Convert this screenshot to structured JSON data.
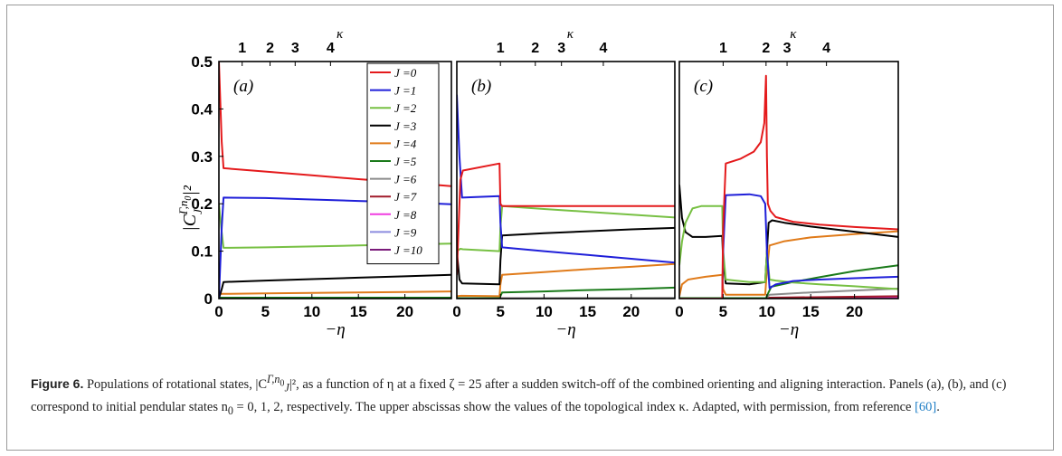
{
  "figure": {
    "caption_label": "Figure 6.",
    "caption_part1": "Populations of rotational states, |C",
    "caption_sup": "Γ,n",
    "caption_sup_sub": "0",
    "caption_sub": "J",
    "caption_part2": "|², as a function of η at a fixed ζ = 25 after a sudden switch-off of the combined orienting and aligning interaction. Panels (a), (b), and (c) correspond to initial pendular states n",
    "caption_n0_sub": "0",
    "caption_part3": " = 0, 1, 2, respectively. The upper abscissas show the values of the topological index κ. Adapted, with permission, from reference ",
    "caption_ref": "[60]",
    "caption_end": "."
  },
  "chart_data": [
    {
      "type": "line",
      "panel_label": "(a)",
      "xlabel": "−η",
      "ylabel": "|C_J^{Γ,n_0}|²",
      "xlim": [
        0,
        25
      ],
      "ylim": [
        0,
        0.5
      ],
      "xticks": [
        0,
        5,
        10,
        15,
        20
      ],
      "yticks": [
        0,
        0.1,
        0.2,
        0.3,
        0.4,
        0.5
      ],
      "top_axis_label": "κ",
      "top_ticks": [
        {
          "label": "1",
          "x": 2.5
        },
        {
          "label": "2",
          "x": 5.5
        },
        {
          "label": "3",
          "x": 8.2
        },
        {
          "label": "4",
          "x": 12.0
        }
      ],
      "series": [
        {
          "name": "J =0",
          "color": "#e41a1c",
          "x": [
            0,
            0.3,
            0.5,
            5,
            10,
            15,
            20,
            25
          ],
          "y": [
            0.5,
            0.33,
            0.275,
            0.268,
            0.26,
            0.252,
            0.245,
            0.237
          ]
        },
        {
          "name": "J =1",
          "color": "#1f1fd9",
          "x": [
            0,
            0.3,
            0.5,
            5,
            10,
            15,
            20,
            25
          ],
          "y": [
            0.0,
            0.15,
            0.213,
            0.212,
            0.209,
            0.206,
            0.203,
            0.199
          ]
        },
        {
          "name": "J =2",
          "color": "#77c043",
          "x": [
            0,
            0.3,
            0.5,
            5,
            10,
            15,
            20,
            25
          ],
          "y": [
            0.2,
            0.14,
            0.107,
            0.108,
            0.11,
            0.112,
            0.114,
            0.116
          ]
        },
        {
          "name": "J =3",
          "color": "#000000",
          "x": [
            0,
            0.3,
            0.5,
            5,
            10,
            15,
            20,
            25
          ],
          "y": [
            0.0,
            0.02,
            0.035,
            0.038,
            0.041,
            0.044,
            0.047,
            0.05
          ]
        },
        {
          "name": "J =4",
          "color": "#e07b1a",
          "x": [
            0,
            0.5,
            5,
            10,
            15,
            20,
            25
          ],
          "y": [
            0.01,
            0.01,
            0.011,
            0.012,
            0.013,
            0.014,
            0.015
          ]
        },
        {
          "name": "J =5",
          "color": "#1a7a1a",
          "x": [
            0,
            25
          ],
          "y": [
            0.002,
            0.002
          ]
        },
        {
          "name": "J =6",
          "color": "#8c8c8c",
          "x": [
            0,
            25
          ],
          "y": [
            0.001,
            0.001
          ]
        },
        {
          "name": "J =7",
          "color": "#a11a2a",
          "x": [
            0,
            25
          ],
          "y": [
            0.001,
            0.001
          ]
        },
        {
          "name": "J =8",
          "color": "#f03ce0",
          "x": [
            0,
            25
          ],
          "y": [
            0.0005,
            0.0005
          ]
        },
        {
          "name": "J =9",
          "color": "#8c8cdf",
          "x": [
            0,
            25
          ],
          "y": [
            0.0005,
            0.0005
          ]
        },
        {
          "name": "J =10",
          "color": "#7a1a7a",
          "x": [
            0,
            25
          ],
          "y": [
            0.0003,
            0.0003
          ]
        }
      ]
    },
    {
      "type": "line",
      "panel_label": "(b)",
      "xlabel": "−η",
      "xlim": [
        0,
        25
      ],
      "ylim": [
        0,
        0.5
      ],
      "xticks": [
        0,
        5,
        10,
        15,
        20
      ],
      "top_axis_label": "κ",
      "top_ticks": [
        {
          "label": "1",
          "x": 5.0
        },
        {
          "label": "2",
          "x": 9.0
        },
        {
          "label": "3",
          "x": 12.0
        },
        {
          "label": "4",
          "x": 16.8
        }
      ],
      "series": [
        {
          "name": "J =0",
          "color": "#e41a1c",
          "x": [
            0,
            0.4,
            0.7,
            4.9,
            5.0,
            5.2,
            25
          ],
          "y": [
            0.05,
            0.25,
            0.27,
            0.285,
            0.2,
            0.195,
            0.195
          ]
        },
        {
          "name": "J =1",
          "color": "#1f1fd9",
          "x": [
            0,
            0.3,
            0.6,
            4.9,
            5.0,
            5.2,
            10,
            15,
            20,
            25
          ],
          "y": [
            0.43,
            0.3,
            0.213,
            0.216,
            0.16,
            0.108,
            0.1,
            0.092,
            0.084,
            0.076
          ]
        },
        {
          "name": "J =2",
          "color": "#77c043",
          "x": [
            0,
            0.4,
            0.7,
            4.9,
            5.0,
            5.2,
            10,
            15,
            20,
            25
          ],
          "y": [
            0.1,
            0.105,
            0.104,
            0.1,
            0.15,
            0.195,
            0.189,
            0.183,
            0.177,
            0.171
          ]
        },
        {
          "name": "J =3",
          "color": "#000000",
          "x": [
            0,
            0.3,
            0.6,
            4.9,
            5.0,
            5.2,
            10,
            15,
            20,
            25
          ],
          "y": [
            0.1,
            0.04,
            0.032,
            0.03,
            0.08,
            0.133,
            0.138,
            0.142,
            0.146,
            0.149
          ]
        },
        {
          "name": "J =4",
          "color": "#e07b1a",
          "x": [
            0,
            0.5,
            4.9,
            5.0,
            5.2,
            10,
            15,
            20,
            25
          ],
          "y": [
            0.005,
            0.006,
            0.005,
            0.03,
            0.05,
            0.056,
            0.062,
            0.067,
            0.073
          ]
        },
        {
          "name": "J =5",
          "color": "#1a7a1a",
          "x": [
            0,
            4.9,
            5.2,
            10,
            15,
            20,
            25
          ],
          "y": [
            0.001,
            0.001,
            0.013,
            0.015,
            0.018,
            0.02,
            0.023
          ]
        },
        {
          "name": "J =6",
          "color": "#8c8c8c",
          "x": [
            0,
            25
          ],
          "y": [
            0.0005,
            0.0015
          ]
        },
        {
          "name": "J =7",
          "color": "#a11a2a",
          "x": [
            0,
            25
          ],
          "y": [
            0.0005,
            0.001
          ]
        },
        {
          "name": "J =8",
          "color": "#f03ce0",
          "x": [
            0,
            25
          ],
          "y": [
            0.0003,
            0.0006
          ]
        },
        {
          "name": "J =9",
          "color": "#8c8cdf",
          "x": [
            0,
            25
          ],
          "y": [
            0.0003,
            0.0005
          ]
        },
        {
          "name": "J =10",
          "color": "#7a1a7a",
          "x": [
            0,
            25
          ],
          "y": [
            0.0002,
            0.0004
          ]
        }
      ]
    },
    {
      "type": "line",
      "panel_label": "(c)",
      "xlabel": "−η",
      "xlim": [
        0,
        25
      ],
      "ylim": [
        0,
        0.5
      ],
      "xticks": [
        0,
        5,
        10,
        15,
        20
      ],
      "top_axis_label": "κ",
      "top_ticks": [
        {
          "label": "1",
          "x": 5.0
        },
        {
          "label": "2",
          "x": 9.9
        },
        {
          "label": "3",
          "x": 12.3
        },
        {
          "label": "4",
          "x": 16.8
        }
      ],
      "series": [
        {
          "name": "J =0",
          "color": "#e41a1c",
          "x": [
            0,
            4.9,
            5.0,
            5.3,
            7,
            8.5,
            9.3,
            9.7,
            9.9,
            10.0,
            10.1,
            10.4,
            11,
            13,
            16,
            20,
            25
          ],
          "y": [
            0.0,
            0.0,
            0.15,
            0.285,
            0.295,
            0.31,
            0.33,
            0.37,
            0.47,
            0.3,
            0.2,
            0.185,
            0.172,
            0.162,
            0.156,
            0.151,
            0.146
          ]
        },
        {
          "name": "J =1",
          "color": "#1f1fd9",
          "x": [
            0,
            4.9,
            5.0,
            5.3,
            8,
            9.3,
            9.8,
            10.0,
            10.3,
            11,
            13,
            16,
            20,
            25
          ],
          "y": [
            0.0,
            0.0,
            0.1,
            0.218,
            0.22,
            0.216,
            0.2,
            0.1,
            0.022,
            0.03,
            0.037,
            0.04,
            0.043,
            0.046
          ]
        },
        {
          "name": "J =2",
          "color": "#77c043",
          "x": [
            0,
            0.3,
            0.7,
            1.5,
            2.5,
            4.9,
            5.0,
            5.3,
            8,
            9.8,
            10.0,
            10.3,
            11,
            13,
            16,
            20,
            25
          ],
          "y": [
            0.07,
            0.12,
            0.16,
            0.19,
            0.195,
            0.195,
            0.1,
            0.04,
            0.035,
            0.035,
            0.1,
            0.04,
            0.038,
            0.034,
            0.03,
            0.026,
            0.02
          ]
        },
        {
          "name": "J =3",
          "color": "#000000",
          "x": [
            0,
            0.3,
            0.7,
            1.5,
            3,
            4.9,
            5.0,
            5.3,
            8,
            9.8,
            10.0,
            10.2,
            10.6,
            12,
            15,
            20,
            25
          ],
          "y": [
            0.24,
            0.17,
            0.14,
            0.13,
            0.13,
            0.132,
            0.08,
            0.032,
            0.03,
            0.035,
            0.1,
            0.16,
            0.165,
            0.16,
            0.152,
            0.141,
            0.13
          ]
        },
        {
          "name": "J =4",
          "color": "#e07b1a",
          "x": [
            0,
            0.3,
            1,
            3,
            4.9,
            5.0,
            5.3,
            9.8,
            10.0,
            10.3,
            12,
            15,
            20,
            25
          ],
          "y": [
            0.005,
            0.03,
            0.04,
            0.046,
            0.05,
            0.02,
            0.008,
            0.008,
            0.06,
            0.112,
            0.121,
            0.129,
            0.136,
            0.142
          ]
        },
        {
          "name": "J =5",
          "color": "#1a7a1a",
          "x": [
            0,
            9.9,
            10.1,
            10.5,
            13,
            16,
            20,
            25
          ],
          "y": [
            0.001,
            0.001,
            0.01,
            0.025,
            0.035,
            0.045,
            0.058,
            0.07
          ]
        },
        {
          "name": "J =6",
          "color": "#8c8c8c",
          "x": [
            0,
            9.9,
            10.3,
            15,
            20,
            25
          ],
          "y": [
            0.001,
            0.001,
            0.008,
            0.013,
            0.017,
            0.021
          ]
        },
        {
          "name": "J =7",
          "color": "#a11a2a",
          "x": [
            0,
            9.9,
            10.3,
            25
          ],
          "y": [
            0.0005,
            0.0005,
            0.002,
            0.005
          ]
        },
        {
          "name": "J =8",
          "color": "#f03ce0",
          "x": [
            0,
            10.3,
            25
          ],
          "y": [
            0.0003,
            0.001,
            0.002
          ]
        },
        {
          "name": "J =9",
          "color": "#8c8cdf",
          "x": [
            0,
            10.3,
            25
          ],
          "y": [
            0.0002,
            0.0008,
            0.0015
          ]
        },
        {
          "name": "J =10",
          "color": "#7a1a7a",
          "x": [
            0,
            10.3,
            25
          ],
          "y": [
            0.0001,
            0.0005,
            0.001
          ]
        }
      ]
    }
  ]
}
